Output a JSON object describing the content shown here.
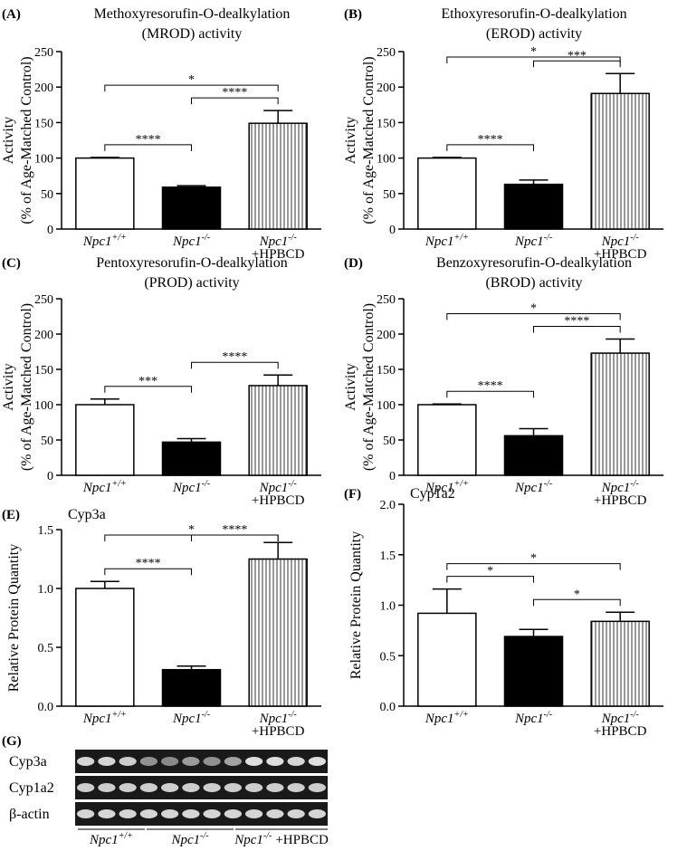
{
  "chart_data": [
    {
      "type": "bar",
      "panel_label": "(A)",
      "title": [
        "Methoxyresorufin-O-dealkylation",
        "(MROD) activity"
      ],
      "ylabel": [
        "Activity",
        "(% of Age-Matched Control)"
      ],
      "categories": [
        "Npc1+/+",
        "Npc1-/-",
        "Npc1-/- +HPBCD"
      ],
      "values": [
        100,
        59,
        149
      ],
      "errors": [
        1,
        2,
        18
      ],
      "fills": [
        "white",
        "black",
        "vertical-lines"
      ],
      "ylim": [
        0,
        250
      ],
      "yticks": [
        0,
        50,
        100,
        150,
        200,
        250
      ],
      "comparisons": [
        {
          "from": 0,
          "to": 1,
          "label": "****"
        },
        {
          "from": 1,
          "to": 2,
          "label": "****"
        },
        {
          "from": 0,
          "to": 2,
          "label": "*"
        }
      ]
    },
    {
      "type": "bar",
      "panel_label": "(B)",
      "title": [
        "Ethoxyresorufin-O-dealkylation",
        "(EROD) activity"
      ],
      "ylabel": [
        "Activity",
        "(% of Age-Matched Control)"
      ],
      "categories": [
        "Npc1+/+",
        "Npc1-/-",
        "Npc1-/- +HPBCD"
      ],
      "values": [
        100,
        63,
        191
      ],
      "errors": [
        1,
        6,
        28
      ],
      "fills": [
        "white",
        "black",
        "vertical-lines"
      ],
      "ylim": [
        0,
        250
      ],
      "yticks": [
        0,
        50,
        100,
        150,
        200,
        250
      ],
      "comparisons": [
        {
          "from": 0,
          "to": 1,
          "label": "****"
        },
        {
          "from": 1,
          "to": 2,
          "label": "***"
        },
        {
          "from": 0,
          "to": 2,
          "label": "*"
        }
      ]
    },
    {
      "type": "bar",
      "panel_label": "(C)",
      "title": [
        "Pentoxyresorufin-O-dealkylation",
        "(PROD) activity"
      ],
      "ylabel": [
        "Activity",
        "(% of Age-Matched Control)"
      ],
      "categories": [
        "Npc1+/+",
        "Npc1-/-",
        "Npc1-/- +HPBCD"
      ],
      "values": [
        100,
        47,
        127
      ],
      "errors": [
        8,
        5,
        15
      ],
      "fills": [
        "white",
        "black",
        "vertical-lines"
      ],
      "ylim": [
        0,
        250
      ],
      "yticks": [
        0,
        50,
        100,
        150,
        200,
        250
      ],
      "comparisons": [
        {
          "from": 0,
          "to": 1,
          "label": "***"
        },
        {
          "from": 1,
          "to": 2,
          "label": "****"
        }
      ]
    },
    {
      "type": "bar",
      "panel_label": "(D)",
      "title": [
        "Benzoxyresorufin-O-dealkylation",
        "(BROD) activity"
      ],
      "ylabel": [
        "Activity",
        "(% of Age-Matched Control)"
      ],
      "categories": [
        "Npc1+/+",
        "Npc1-/-",
        "Npc1-/- +HPBCD"
      ],
      "values": [
        100,
        56,
        173
      ],
      "errors": [
        1,
        10,
        20
      ],
      "fills": [
        "white",
        "black",
        "vertical-lines"
      ],
      "ylim": [
        0,
        250
      ],
      "yticks": [
        0,
        50,
        100,
        150,
        200,
        250
      ],
      "comparisons": [
        {
          "from": 0,
          "to": 1,
          "label": "****"
        },
        {
          "from": 1,
          "to": 2,
          "label": "****"
        },
        {
          "from": 0,
          "to": 2,
          "label": "*"
        }
      ]
    },
    {
      "type": "bar",
      "panel_label": "(E)",
      "title": [
        "Cyp3a"
      ],
      "ylabel": [
        "Relative Protein Quantity"
      ],
      "categories": [
        "Npc1+/+",
        "Npc1-/-",
        "Npc1-/- +HPBCD"
      ],
      "values": [
        1.0,
        0.31,
        1.25
      ],
      "errors": [
        0.06,
        0.03,
        0.14
      ],
      "fills": [
        "white",
        "black",
        "vertical-lines"
      ],
      "ylim": [
        0,
        1.5
      ],
      "yticks": [
        {
          "value": 0,
          "label": "0.0"
        },
        0.5,
        {
          "value": 1,
          "label": "1.0"
        },
        1.5
      ],
      "comparisons": [
        {
          "from": 0,
          "to": 1,
          "label": "****"
        },
        {
          "from": 1,
          "to": 2,
          "label": "****"
        },
        {
          "from": 0,
          "to": 2,
          "label": "*"
        }
      ]
    },
    {
      "type": "bar",
      "panel_label": "(F)",
      "title": [
        "Cyp1a2"
      ],
      "ylabel": [
        "Relative Protein Quantity"
      ],
      "categories": [
        "Npc1+/+",
        "Npc1-/-",
        "Npc1-/- +HPBCD"
      ],
      "values": [
        0.92,
        0.69,
        0.84
      ],
      "errors": [
        0.24,
        0.07,
        0.09
      ],
      "fills": [
        "white",
        "black",
        "vertical-lines"
      ],
      "ylim": [
        0,
        2
      ],
      "yticks": [
        {
          "value": 0,
          "label": "0.0"
        },
        0.5,
        {
          "value": 1,
          "label": "1.0"
        },
        1.5,
        {
          "value": 2,
          "label": "2.0"
        }
      ],
      "comparisons": [
        {
          "from": 0,
          "to": 1,
          "label": "*"
        },
        {
          "from": 1,
          "to": 2,
          "label": "*"
        },
        {
          "from": 0,
          "to": 2,
          "label": "*"
        }
      ]
    }
  ],
  "blot": {
    "panel_label": "(G)",
    "rows": [
      "Cyp3a",
      "Cyp1a2",
      "β-actin"
    ],
    "groups": [
      "Npc1+/+",
      "Npc1-/-",
      "Npc1-/- +HPBCD"
    ]
  }
}
